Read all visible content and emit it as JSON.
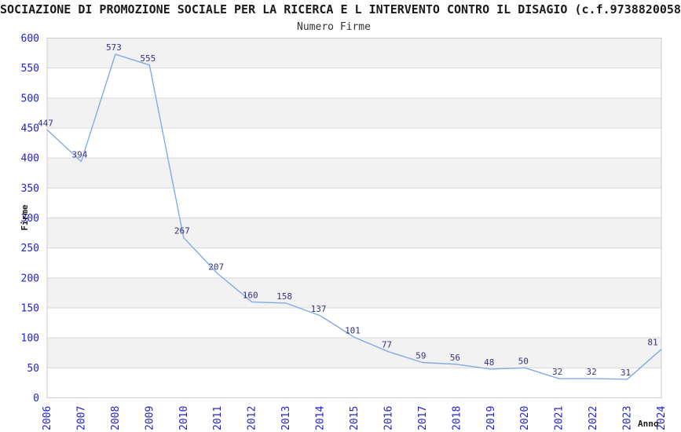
{
  "chart_data": {
    "type": "line",
    "title": "SOCIAZIONE DI PROMOZIONE SOCIALE PER LA RICERCA E L INTERVENTO CONTRO IL DISAGIO (c.f.9738820058",
    "subtitle": "Numero Firme",
    "xlabel": "Anno",
    "ylabel": "Firme",
    "categories": [
      "2006",
      "2007",
      "2008",
      "2009",
      "2010",
      "2011",
      "2012",
      "2013",
      "2014",
      "2015",
      "2016",
      "2017",
      "2018",
      "2019",
      "2020",
      "2021",
      "2022",
      "2023",
      "2024"
    ],
    "series": [
      {
        "name": "Numero Firme",
        "values": [
          447,
          394,
          573,
          555,
          267,
          207,
          160,
          158,
          137,
          101,
          77,
          59,
          56,
          48,
          50,
          32,
          32,
          31,
          81
        ]
      }
    ],
    "ylim": [
      0,
      600
    ],
    "ytick_step": 50,
    "grid": "horizontal",
    "legend": "none",
    "background_bands": true,
    "point_labels": true,
    "colors": {
      "line": "#82abe6",
      "tick_label": "#2222cc",
      "point_label": "#333380",
      "band": "#f2f2f2",
      "gridline": "#d9d9d9",
      "plot_border": "#cccccc",
      "title": "#1a1a1a",
      "axis_title": "#1a1a1a",
      "background": "#ffffff"
    }
  }
}
